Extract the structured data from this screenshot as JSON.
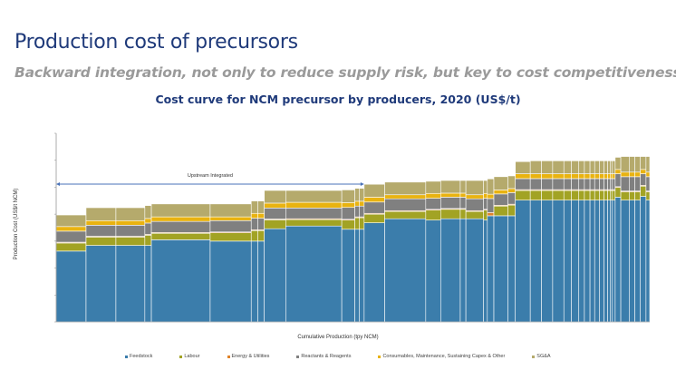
{
  "slide": {
    "title": "Production cost of precursors",
    "subtitle": "Backward integration, not only to reduce supply risk, but key to cost competitiveness"
  },
  "chart_data": {
    "type": "bar",
    "subtype": "stacked cost curve (variable-width bars)",
    "title": "Cost curve for NCM precursor by producers, 2020 (US$/t)",
    "xlabel": "Cumulative Production (tpy NCM)",
    "ylabel": "Production Cost (US$/t NCM)",
    "y_tick_labels_shown": false,
    "ylim": [
      0,
      7
    ],
    "grid": false,
    "legend_position": "bottom",
    "annotation": {
      "text": "Upstream Integrated",
      "spans_bars": [
        0,
        12
      ]
    },
    "series": [
      {
        "name": "Feedstock",
        "color": "#3b7dab"
      },
      {
        "name": "Labour",
        "color": "#a2a324"
      },
      {
        "name": "Energy & Utilities",
        "color": "#e0832a"
      },
      {
        "name": "Reactants & Reagents",
        "color": "#808080"
      },
      {
        "name": "Consumables, Maintenance, Sustaining Capex & Other",
        "color": "#e9b310"
      },
      {
        "name": "SG&A",
        "color": "#b5aa6c"
      }
    ],
    "bar_fields": [
      "capacity",
      "Feedstock",
      "Labour",
      "Energy & Utilities",
      "Reactants & Reagents",
      "Consumables, Maintenance, Sustaining Capex & Other",
      "SG&A"
    ],
    "bars": [
      [
        32,
        2.63,
        0.3,
        0.03,
        0.41,
        0.17,
        0.43
      ],
      [
        32,
        2.84,
        0.31,
        0.03,
        0.41,
        0.17,
        0.48
      ],
      [
        31,
        2.84,
        0.31,
        0.03,
        0.41,
        0.17,
        0.48
      ],
      [
        7,
        2.84,
        0.38,
        0.03,
        0.42,
        0.17,
        0.48
      ],
      [
        63,
        3.05,
        0.24,
        0.03,
        0.41,
        0.17,
        0.48
      ],
      [
        44,
        3.0,
        0.31,
        0.03,
        0.42,
        0.14,
        0.48
      ],
      [
        7,
        3.0,
        0.39,
        0.03,
        0.43,
        0.18,
        0.46
      ],
      [
        7,
        3.0,
        0.39,
        0.03,
        0.43,
        0.18,
        0.46
      ],
      [
        23,
        3.46,
        0.33,
        0.03,
        0.41,
        0.18,
        0.47
      ],
      [
        60,
        3.56,
        0.24,
        0.03,
        0.4,
        0.21,
        0.44
      ],
      [
        14,
        3.44,
        0.34,
        0.03,
        0.44,
        0.18,
        0.47
      ],
      [
        5,
        3.44,
        0.43,
        0.03,
        0.4,
        0.18,
        0.48
      ],
      [
        5,
        3.44,
        0.43,
        0.03,
        0.4,
        0.18,
        0.48
      ],
      [
        22,
        3.68,
        0.32,
        0.03,
        0.42,
        0.18,
        0.48
      ],
      [
        44,
        3.83,
        0.27,
        0.03,
        0.44,
        0.15,
        0.47
      ],
      [
        16,
        3.78,
        0.37,
        0.03,
        0.41,
        0.18,
        0.45
      ],
      [
        21,
        3.83,
        0.35,
        0.03,
        0.42,
        0.15,
        0.47
      ],
      [
        6,
        3.83,
        0.35,
        0.03,
        0.42,
        0.15,
        0.47
      ],
      [
        19,
        3.83,
        0.27,
        0.03,
        0.44,
        0.15,
        0.53
      ],
      [
        4,
        3.78,
        0.37,
        0.03,
        0.41,
        0.18,
        0.48
      ],
      [
        7,
        3.94,
        0.0,
        0.12,
        0.52,
        0.16,
        0.57
      ],
      [
        15,
        3.94,
        0.36,
        0.03,
        0.42,
        0.15,
        0.49
      ],
      [
        8,
        3.94,
        0.4,
        0.03,
        0.43,
        0.15,
        0.47
      ],
      [
        16,
        4.52,
        0.36,
        0.03,
        0.41,
        0.18,
        0.45
      ],
      [
        12,
        4.52,
        0.36,
        0.03,
        0.41,
        0.18,
        0.48
      ],
      [
        12,
        4.52,
        0.36,
        0.03,
        0.41,
        0.18,
        0.48
      ],
      [
        12,
        4.52,
        0.36,
        0.03,
        0.41,
        0.18,
        0.48
      ],
      [
        8,
        4.52,
        0.36,
        0.03,
        0.41,
        0.18,
        0.48
      ],
      [
        8,
        4.52,
        0.36,
        0.03,
        0.41,
        0.18,
        0.48
      ],
      [
        6,
        4.52,
        0.36,
        0.03,
        0.41,
        0.18,
        0.48
      ],
      [
        6,
        4.52,
        0.36,
        0.03,
        0.41,
        0.18,
        0.48
      ],
      [
        5,
        4.52,
        0.36,
        0.03,
        0.41,
        0.18,
        0.48
      ],
      [
        5,
        4.52,
        0.36,
        0.03,
        0.41,
        0.18,
        0.48
      ],
      [
        5,
        4.52,
        0.36,
        0.03,
        0.41,
        0.18,
        0.48
      ],
      [
        4,
        4.52,
        0.36,
        0.03,
        0.41,
        0.18,
        0.48
      ],
      [
        3,
        4.52,
        0.36,
        0.03,
        0.41,
        0.18,
        0.48
      ],
      [
        2,
        4.52,
        0.36,
        0.03,
        0.41,
        0.18,
        0.48
      ],
      [
        3,
        4.52,
        0.36,
        0.03,
        0.41,
        0.18,
        0.48
      ],
      [
        6,
        4.63,
        0.36,
        0.03,
        0.48,
        0.16,
        0.45
      ],
      [
        9,
        4.52,
        0.31,
        0.03,
        0.53,
        0.17,
        0.58
      ],
      [
        6,
        4.52,
        0.31,
        0.03,
        0.53,
        0.17,
        0.58
      ],
      [
        6,
        4.52,
        0.31,
        0.03,
        0.53,
        0.17,
        0.58
      ],
      [
        6,
        4.66,
        0.38,
        0.03,
        0.43,
        0.16,
        0.48
      ],
      [
        4,
        4.52,
        0.31,
        0.03,
        0.53,
        0.17,
        0.58
      ]
    ]
  }
}
